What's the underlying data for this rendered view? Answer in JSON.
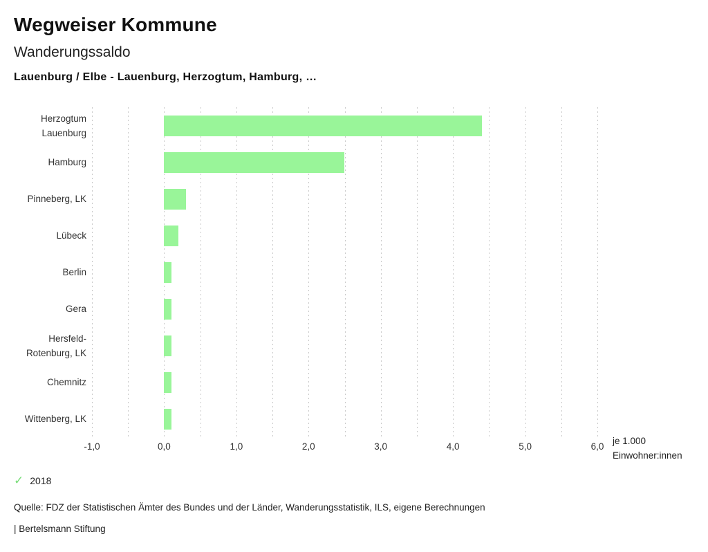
{
  "header": {
    "title": "Wegweiser Kommune",
    "subtitle": "Wanderungssaldo",
    "scope": "Lauenburg / Elbe - Lauenburg, Herzogtum, Hamburg, …"
  },
  "chart_data": {
    "type": "bar",
    "orientation": "horizontal",
    "title": "Wanderungssaldo",
    "categories": [
      "Herzogtum Lauenburg",
      "Hamburg",
      "Pinneberg, LK",
      "Lübeck",
      "Berlin",
      "Gera",
      "Hersfeld-Rotenburg, LK",
      "Chemnitz",
      "Wittenberg, LK"
    ],
    "category_label_lines": [
      [
        "Herzogtum",
        "Lauenburg"
      ],
      [
        "Hamburg"
      ],
      [
        "Pinneberg, LK"
      ],
      [
        "Lübeck"
      ],
      [
        "Berlin"
      ],
      [
        "Gera"
      ],
      [
        "Hersfeld-",
        "Rotenburg, LK"
      ],
      [
        "Chemnitz"
      ],
      [
        "Wittenberg, LK"
      ]
    ],
    "series": [
      {
        "name": "2018",
        "color": "#99f599",
        "values": [
          4.4,
          2.5,
          0.3,
          0.2,
          0.1,
          0.1,
          0.1,
          0.1,
          0.1
        ]
      }
    ],
    "xlim": [
      -1.0,
      6.0
    ],
    "x_tick_values": [
      -1,
      0,
      1,
      2,
      3,
      4,
      5,
      6
    ],
    "x_tick_labels": [
      "-1,0",
      "0,0",
      "1,0",
      "2,0",
      "3,0",
      "4,0",
      "5,0",
      "6,0"
    ],
    "gridline_step": 0.5,
    "grid": "vertical-dashed",
    "legend_position": "bottom-left",
    "unit_label": [
      "je 1.000",
      "Einwohner:innen"
    ]
  },
  "legend": {
    "items": [
      {
        "label": "2018",
        "marker": "check-icon",
        "color": "#77dd77"
      }
    ]
  },
  "footer": {
    "source": "Quelle: FDZ der Statistischen Ämter des Bundes und der Länder, Wanderungsstatistik, ILS, eigene Berechnungen",
    "attribution": "| Bertelsmann Stiftung"
  },
  "colors": {
    "bar": "#99f599",
    "grid": "#c9c9c9",
    "text": "#333333"
  }
}
